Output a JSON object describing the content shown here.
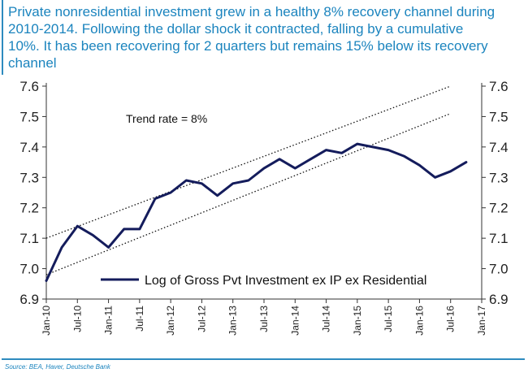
{
  "header": {
    "title": "Private nonresidential investment grew in a healthy 8% recovery channel during 2010-2014. Following the dollar shock it contracted, falling by a cumulative 10%. It has been recovering for 2 quarters but remains 15% below its recovery channel"
  },
  "footer": {
    "source": "Source: BEA, Haver, Deutsche Bank"
  },
  "chart_data": {
    "type": "line",
    "title": "",
    "xlabel": "",
    "ylabel": "",
    "ylim": [
      6.9,
      7.6
    ],
    "yticks": [
      6.9,
      7.0,
      7.1,
      7.2,
      7.3,
      7.4,
      7.5,
      7.6
    ],
    "ytick_labels": [
      "6.9",
      "7.0",
      "7.1",
      "7.2",
      "7.3",
      "7.4",
      "7.5",
      "7.6"
    ],
    "xlim": [
      "Jan-10",
      "Jan-17"
    ],
    "xtick_labels": [
      "Jan-10",
      "Jul-10",
      "Jan-11",
      "Jul-11",
      "Jan-12",
      "Jul-12",
      "Jan-13",
      "Jul-13",
      "Jan-14",
      "Jul-14",
      "Jan-15",
      "Jul-15",
      "Jan-16",
      "Jul-16",
      "Jan-17"
    ],
    "dual_y_axis": true,
    "grid": false,
    "legend_position": "bottom-right",
    "annotation": "Trend rate = 8%",
    "colors": {
      "series": "#141c5c",
      "trend": "#111111"
    },
    "series": [
      {
        "name": "Log of Gross Pvt Investment ex IP ex Residential",
        "style": "solid",
        "x": [
          "Jan-10",
          "Apr-10",
          "Jul-10",
          "Oct-10",
          "Jan-11",
          "Apr-11",
          "Jul-11",
          "Oct-11",
          "Jan-12",
          "Apr-12",
          "Jul-12",
          "Oct-12",
          "Jan-13",
          "Apr-13",
          "Jul-13",
          "Oct-13",
          "Jan-14",
          "Apr-14",
          "Jul-14",
          "Oct-14",
          "Jan-15",
          "Apr-15",
          "Jul-15",
          "Oct-15",
          "Jan-16",
          "Apr-16",
          "Jul-16",
          "Oct-16"
        ],
        "values": [
          6.96,
          7.07,
          7.14,
          7.11,
          7.07,
          7.13,
          7.13,
          7.23,
          7.25,
          7.29,
          7.28,
          7.24,
          7.28,
          7.29,
          7.33,
          7.36,
          7.33,
          7.36,
          7.39,
          7.38,
          7.41,
          7.4,
          7.39,
          7.37,
          7.34,
          7.3,
          7.32,
          7.35
        ]
      },
      {
        "name": "upper trend",
        "style": "dotted",
        "x": [
          "Jan-10",
          "Jul-16"
        ],
        "values": [
          7.1,
          7.6
        ]
      },
      {
        "name": "lower trend",
        "style": "dotted",
        "x": [
          "Jan-10",
          "Jul-16"
        ],
        "values": [
          6.98,
          7.51
        ]
      }
    ]
  }
}
